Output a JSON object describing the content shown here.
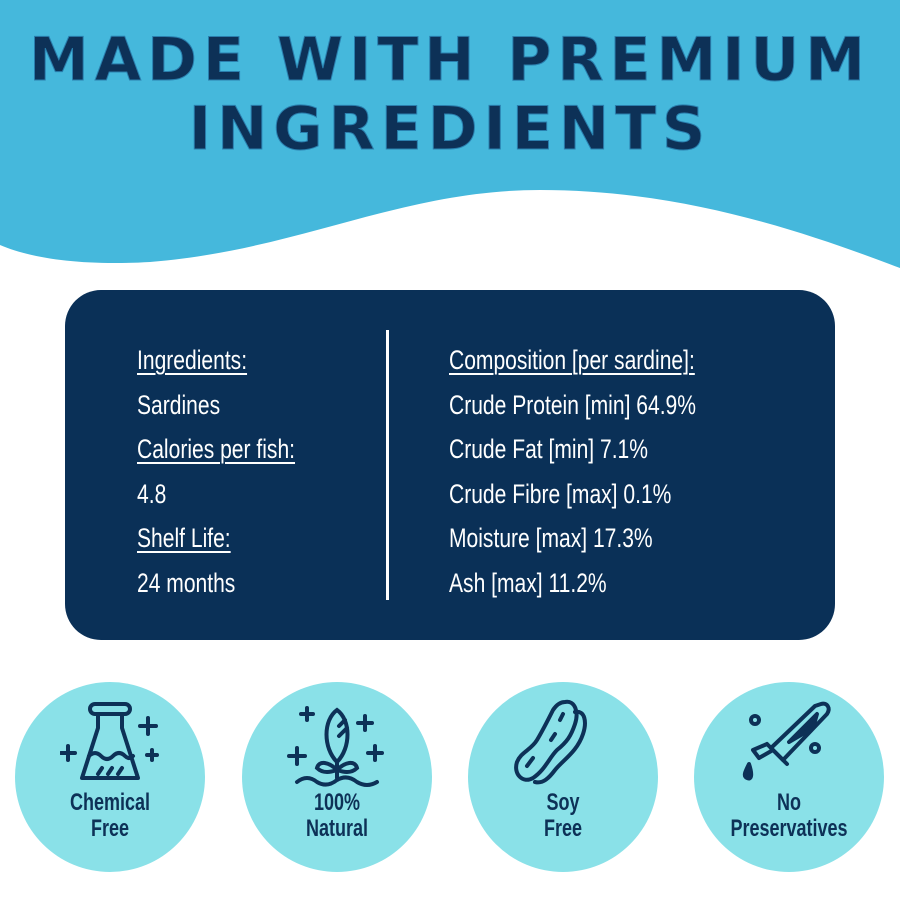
{
  "header": {
    "title_line1": "MADE WITH PREMIUM",
    "title_line2": "INGREDIENTS",
    "band_color": "#45b8dc"
  },
  "card": {
    "left": [
      {
        "text": "Ingredients:",
        "heading": true
      },
      {
        "text": "Sardines",
        "heading": false
      },
      {
        "text": "Calories per fish:",
        "heading": true
      },
      {
        "text": "4.8",
        "heading": false
      },
      {
        "text": "Shelf Life: ",
        "heading": true
      },
      {
        "text": "24 months",
        "heading": false
      }
    ],
    "right": [
      {
        "text": "Composition [per sardine]:",
        "heading": true
      },
      {
        "text": "Crude Protein [min] 64.9%",
        "heading": false
      },
      {
        "text": "Crude Fat [min] 7.1%",
        "heading": false
      },
      {
        "text": "Crude Fibre [max] 0.1%",
        "heading": false
      },
      {
        "text": "Moisture [max] 17.3%",
        "heading": false
      },
      {
        "text": "Ash [max] 11.2%",
        "heading": false
      }
    ],
    "color": "#0a3057"
  },
  "badges": [
    {
      "icon": "flask-icon",
      "line1": "Chemical",
      "line2": "Free"
    },
    {
      "icon": "sprout-icon",
      "line1": "100%",
      "line2": "Natural"
    },
    {
      "icon": "soybean-icon",
      "line1": "Soy",
      "line2": "Free"
    },
    {
      "icon": "test-tube-icon",
      "line1": "No",
      "line2": "Preservatives"
    }
  ]
}
